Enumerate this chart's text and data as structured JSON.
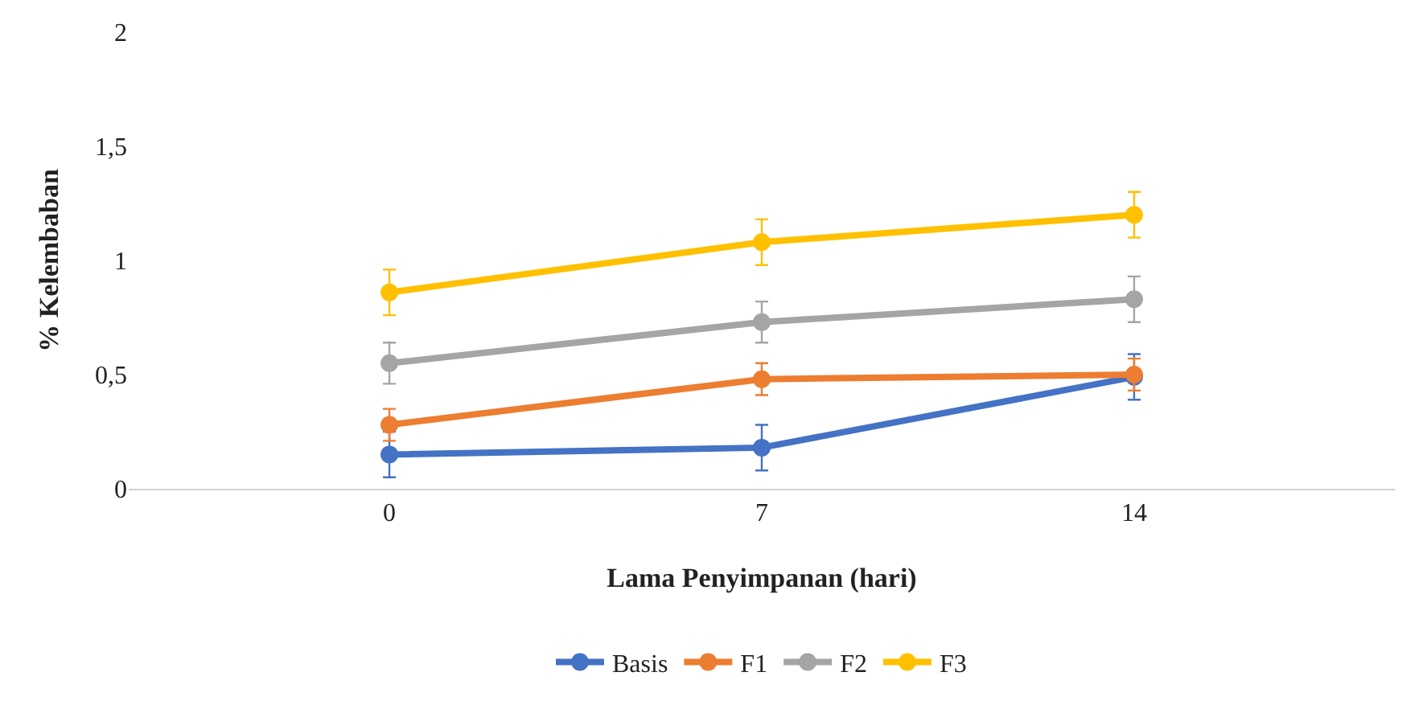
{
  "chart_data": {
    "type": "line",
    "xlabel": "Lama Penyimpanan (hari)",
    "ylabel": "% Kelembaban",
    "categories": [
      "0",
      "7",
      "14"
    ],
    "series": [
      {
        "name": "Basis",
        "color": "#4472c4",
        "values": [
          0.15,
          0.18,
          0.49
        ],
        "errors": [
          0.1,
          0.1,
          0.1
        ]
      },
      {
        "name": "F1",
        "color": "#ed7d31",
        "values": [
          0.28,
          0.48,
          0.5
        ],
        "errors": [
          0.07,
          0.07,
          0.07
        ]
      },
      {
        "name": "F2",
        "color": "#a5a5a5",
        "values": [
          0.55,
          0.73,
          0.83
        ],
        "errors": [
          0.09,
          0.09,
          0.1
        ]
      },
      {
        "name": "F3",
        "color": "#ffc000",
        "values": [
          0.86,
          1.08,
          1.2
        ],
        "errors": [
          0.1,
          0.1,
          0.1
        ]
      }
    ],
    "ylim": [
      0,
      2
    ],
    "yticks": [
      0,
      {
        "value": 0.5,
        "label": "0,5"
      },
      1,
      {
        "value": 1.5,
        "label": "1,5"
      },
      2
    ],
    "grid": false,
    "legend": "bottom",
    "marker": "circle",
    "line_style": "solid"
  }
}
